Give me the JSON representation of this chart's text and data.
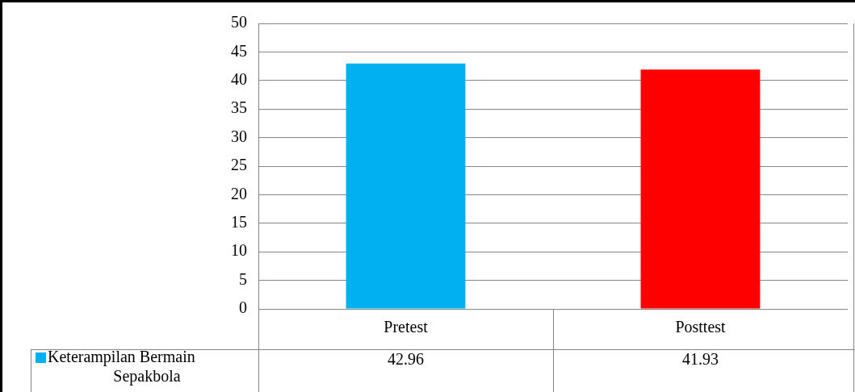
{
  "chart_data": {
    "type": "bar",
    "categories": [
      "Pretest",
      "Posttest"
    ],
    "series": [
      {
        "name": "Keterampilan Bermain Sepakbola",
        "colors": [
          "#00b0f0",
          "#ff0000"
        ],
        "values": [
          42.96,
          41.93
        ]
      }
    ],
    "ylim": [
      0,
      50
    ],
    "yticks": [
      0,
      5,
      10,
      15,
      20,
      25,
      30,
      35,
      40,
      45,
      50
    ],
    "grid": "y",
    "data_labels": true,
    "legend": "bottom"
  }
}
